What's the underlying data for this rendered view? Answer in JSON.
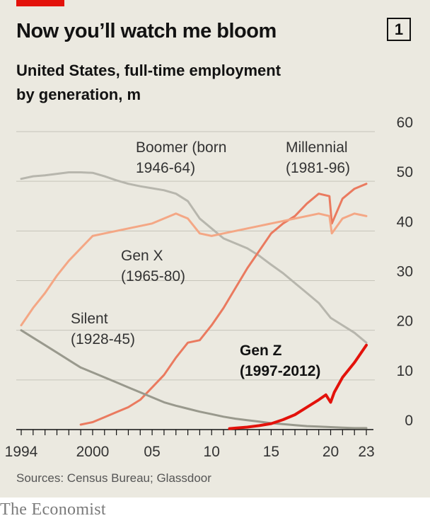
{
  "header": {
    "title": "Now you’ll watch me bloom",
    "chart_number": "1",
    "subtitle": "United States, full-time employment by generation, m"
  },
  "footer": {
    "source": "Sources: Census Bureau; Glassdoor",
    "brand": "The Economist"
  },
  "colors": {
    "background": "#ebe9e0",
    "accent": "#e3120b",
    "boomer": "#b7b6ad",
    "silent": "#99998d",
    "genx": "#f4a785",
    "millennial": "#ea7a5f",
    "genz": "#e3120b"
  },
  "chart_data": {
    "type": "line",
    "title": "Now you’ll watch me bloom",
    "subtitle": "United States, full-time employment by generation, m",
    "xlim": [
      1994,
      2023.5
    ],
    "ylim": [
      0,
      60
    ],
    "y_ticks": [
      "0",
      "10",
      "20",
      "30",
      "40",
      "50",
      "60"
    ],
    "x_tick_labels": [
      "1994",
      "2000",
      "05",
      "10",
      "15",
      "20",
      "23"
    ],
    "grid": true,
    "series": [
      {
        "name": "Boomer (born 1946-64)",
        "label_lines": [
          "Boomer (born",
          "1946-64)"
        ],
        "color": "#b7b6ad",
        "x": [
          1994,
          1995,
          1996,
          1997,
          1998,
          1999,
          2000,
          2001,
          2002,
          2003,
          2004,
          2005,
          2006,
          2007,
          2008,
          2009,
          2010,
          2011,
          2012,
          2013,
          2014,
          2015,
          2016,
          2017,
          2018,
          2019,
          2020,
          2021,
          2022,
          2023
        ],
        "y": [
          50.5,
          51.0,
          51.2,
          51.5,
          51.8,
          51.8,
          51.7,
          51.0,
          50.2,
          49.5,
          49.0,
          48.6,
          48.2,
          47.5,
          46.0,
          42.5,
          40.5,
          38.5,
          37.5,
          36.5,
          35.0,
          33.2,
          31.5,
          29.5,
          27.5,
          25.5,
          22.5,
          21.0,
          19.5,
          17.5
        ]
      },
      {
        "name": "Millennial (1981-96)",
        "label_lines": [
          "Millennial",
          "(1981-96)"
        ],
        "color": "#ea7a5f",
        "x": [
          1999,
          2000,
          2001,
          2002,
          2003,
          2004,
          2005,
          2006,
          2007,
          2008,
          2009,
          2010,
          2011,
          2012,
          2013,
          2014,
          2015,
          2016,
          2017,
          2018,
          2019,
          2019.9,
          2020.1,
          2021,
          2022,
          2023
        ],
        "y": [
          1.0,
          1.5,
          2.5,
          3.5,
          4.5,
          6.0,
          8.5,
          11.0,
          14.5,
          17.5,
          18.0,
          21.0,
          24.5,
          28.5,
          32.5,
          36.0,
          39.5,
          41.5,
          43.0,
          45.5,
          47.5,
          47.0,
          41.5,
          46.5,
          48.5,
          49.5
        ]
      },
      {
        "name": "Gen X (1965-80)",
        "label_lines": [
          "Gen X",
          "(1965-80)"
        ],
        "color": "#f4a785",
        "x": [
          1994,
          1995,
          1996,
          1997,
          1998,
          1999,
          2000,
          2001,
          2002,
          2003,
          2004,
          2005,
          2006,
          2007,
          2008,
          2009,
          2010,
          2011,
          2012,
          2013,
          2014,
          2015,
          2016,
          2017,
          2018,
          2019,
          2019.9,
          2020.1,
          2021,
          2022,
          2023
        ],
        "y": [
          21.0,
          24.5,
          27.5,
          31.0,
          34.0,
          36.5,
          39.0,
          39.5,
          40.0,
          40.5,
          41.0,
          41.5,
          42.5,
          43.5,
          42.5,
          39.5,
          39.0,
          39.5,
          40.0,
          40.5,
          41.0,
          41.5,
          42.0,
          42.5,
          43.0,
          43.5,
          43.0,
          39.5,
          42.5,
          43.5,
          43.0
        ]
      },
      {
        "name": "Silent (1928-45)",
        "label_lines": [
          "Silent",
          "(1928-45)"
        ],
        "color": "#99998d",
        "x": [
          1994,
          1995,
          1996,
          1997,
          1998,
          1999,
          2000,
          2001,
          2002,
          2003,
          2004,
          2005,
          2006,
          2007,
          2008,
          2009,
          2010,
          2011,
          2012,
          2013,
          2014,
          2015,
          2016,
          2017,
          2018,
          2019,
          2020,
          2021,
          2022,
          2023
        ],
        "y": [
          20.0,
          18.5,
          17.0,
          15.5,
          14.0,
          12.5,
          11.5,
          10.5,
          9.5,
          8.5,
          7.5,
          6.5,
          5.5,
          4.8,
          4.2,
          3.6,
          3.1,
          2.6,
          2.2,
          1.9,
          1.6,
          1.3,
          1.1,
          0.9,
          0.7,
          0.6,
          0.5,
          0.4,
          0.3,
          0.3
        ]
      },
      {
        "name": "Gen Z (1997-2012)",
        "label_lines": [
          "Gen Z",
          "(1997-2012)"
        ],
        "color": "#e3120b",
        "x": [
          2011.5,
          2012,
          2013,
          2014,
          2015,
          2016,
          2017,
          2018,
          2019,
          2019.6,
          2020,
          2020.3,
          2021,
          2022,
          2023
        ],
        "y": [
          0.2,
          0.3,
          0.5,
          0.8,
          1.2,
          2.0,
          3.0,
          4.5,
          6.0,
          7.0,
          5.5,
          7.5,
          10.5,
          13.5,
          17.0
        ]
      }
    ]
  }
}
